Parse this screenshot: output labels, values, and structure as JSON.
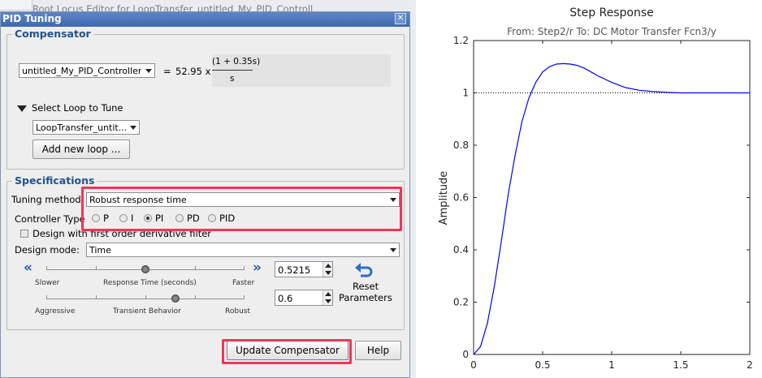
{
  "background": {
    "header_text": "Root Locus Editor for LoopTransfer_untitled_My_PID_Controll"
  },
  "dialog": {
    "title": "PID Tuning",
    "close_symbol": "✕",
    "compensator": {
      "group_title": "Compensator",
      "controller_select": "untitled_My_PID_Controller",
      "equals": "=",
      "gain_expr": "52.95 x",
      "numerator": "(1 + 0.35s)",
      "denominator": "s",
      "select_loop_label": "Select Loop to Tune",
      "loop_select": "LoopTransfer_untit...",
      "add_loop_button": "Add new loop ..."
    },
    "specifications": {
      "group_title": "Specifications",
      "tuning_method_label": "Tuning method:",
      "tuning_method_value": "Robust response time",
      "controller_type_label": "Controller Type",
      "controller_types": [
        {
          "label": "P",
          "selected": false
        },
        {
          "label": "I",
          "selected": false
        },
        {
          "label": "PI",
          "selected": true
        },
        {
          "label": "PD",
          "selected": false
        },
        {
          "label": "PID",
          "selected": false
        }
      ],
      "derivative_filter_label": "Design with first order derivative filter",
      "derivative_filter_checked": false,
      "design_mode_label": "Design mode:",
      "design_mode_value": "Time",
      "left_arrows": "«",
      "right_arrows": "»",
      "response_slider": {
        "left_label": "Slower",
        "center_label": "Response Time (seconds)",
        "right_label": "Faster",
        "value": "0.5215",
        "thumb_fraction": 0.5
      },
      "transient_slider": {
        "left_label": "Aggressive",
        "center_label": "Transient Behavior",
        "right_label": "Robust",
        "value": "0.6",
        "thumb_fraction": 0.6
      },
      "reset_label_1": "Reset",
      "reset_label_2": "Parameters"
    },
    "buttons": {
      "update": "Update Compensator",
      "help": "Help"
    },
    "highlight_color": "#f0355a"
  },
  "chart_data": {
    "type": "line",
    "title": "Step Response",
    "subtitle": "From: Step2/r  To: DC Motor Transfer Fcn3/y",
    "xlabel": "",
    "ylabel": "Amplitude",
    "xlim": [
      0,
      2
    ],
    "ylim": [
      0,
      1.2
    ],
    "x_ticks": [
      "0",
      "0.5",
      "1",
      "1.5",
      "2"
    ],
    "y_ticks": [
      "0",
      "0.2",
      "0.4",
      "0.6",
      "0.8",
      "1",
      "1.2"
    ],
    "reference_line": 1,
    "series": [
      {
        "color": "#0000ff",
        "x": [
          0,
          0.05,
          0.1,
          0.15,
          0.2,
          0.25,
          0.3,
          0.35,
          0.4,
          0.45,
          0.5,
          0.55,
          0.6,
          0.65,
          0.7,
          0.75,
          0.8,
          0.85,
          0.9,
          1.0,
          1.1,
          1.2,
          1.3,
          1.4,
          1.5,
          1.6,
          1.7,
          1.8,
          1.9,
          2.0
        ],
        "values": [
          0,
          0.03,
          0.12,
          0.26,
          0.43,
          0.61,
          0.76,
          0.89,
          0.98,
          1.04,
          1.08,
          1.1,
          1.11,
          1.112,
          1.11,
          1.105,
          1.095,
          1.08,
          1.065,
          1.04,
          1.02,
          1.01,
          1.005,
          1.002,
          1.0,
          1.0,
          1.0,
          1.0,
          1.0,
          1.0
        ]
      }
    ],
    "grid": false
  }
}
